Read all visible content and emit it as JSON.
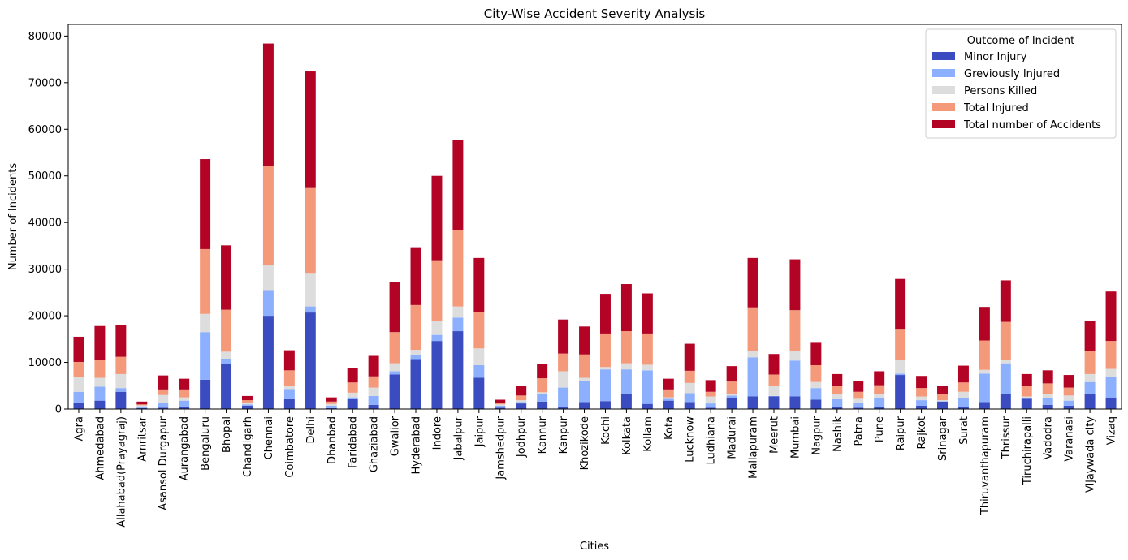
{
  "chart_data": {
    "type": "bar",
    "stacked": true,
    "title": "City-Wise Accident Severity Analysis",
    "xlabel": "Cities",
    "ylabel": "Number of Incidents",
    "ylim": [
      0,
      82500
    ],
    "yticks": [
      0,
      10000,
      20000,
      30000,
      40000,
      50000,
      60000,
      70000,
      80000
    ],
    "grid": false,
    "legend": {
      "title": "Outcome of Incident",
      "placement": "top-right"
    },
    "categories": [
      "Agra",
      "Ahmedabad",
      "Allahabad(Prayagraj)",
      "Amritsar",
      "Asansol Durgapur",
      "Aurangabad",
      "Bengaluru",
      "Bhopal",
      "Chandigarh",
      "Chennai",
      "Coimbatore",
      "Delhi",
      "Dhanbad",
      "Faridabad",
      "Ghaziabad",
      "Gwalior",
      "Hyderabad",
      "Indore",
      "Jabalpur",
      "Jaipur",
      "Jamshedpur",
      "Jodhpur",
      "Kannur",
      "Kanpur",
      "Khozikode",
      "Kochi",
      "Kolkata",
      "Kollam",
      "Kota",
      "Lucknow",
      "Ludhiana",
      "Madurai",
      "Mallapuram",
      "Meerut",
      "Mumbai",
      "Nagpur",
      "Nashik",
      "Patna",
      "Pune",
      "Raipur",
      "Rajkot",
      "Srinagar",
      "Surat",
      "Thiruvanthapuram",
      "Thrissur",
      "Tiruchirapalli",
      "Vadodra",
      "Varanasi",
      "Vijaywada city",
      "Vizaq"
    ],
    "series": [
      {
        "name": "Minor Injury",
        "color": "#3b4cc0",
        "values": [
          1400,
          1800,
          3700,
          200,
          300,
          500,
          6300,
          9600,
          700,
          20000,
          2100,
          20700,
          200,
          2100,
          900,
          7400,
          10700,
          14600,
          16700,
          6700,
          300,
          1200,
          1600,
          400,
          1500,
          1700,
          3300,
          1100,
          1800,
          1500,
          300,
          2300,
          2700,
          2700,
          2700,
          2000,
          400,
          300,
          500,
          7300,
          700,
          1600,
          400,
          1500,
          3200,
          2200,
          900,
          700,
          3300,
          2300
        ]
      },
      {
        "name": "Greviously Injured",
        "color": "#8db0fe",
        "values": [
          2300,
          3000,
          800,
          200,
          1100,
          1300,
          10200,
          1200,
          300,
          5500,
          2200,
          1300,
          500,
          400,
          1900,
          700,
          900,
          1300,
          2900,
          2700,
          400,
          300,
          1600,
          4200,
          4500,
          6800,
          5200,
          7200,
          400,
          1900,
          900,
          600,
          8400,
          100,
          7700,
          2500,
          1700,
          1100,
          1900,
          300,
          1200,
          100,
          2000,
          6100,
          6600,
          100,
          1400,
          1100,
          2500,
          4700
        ]
      },
      {
        "name": "Persons Killed",
        "color": "#dddddd",
        "values": [
          3200,
          1900,
          3000,
          400,
          1600,
          700,
          3900,
          1500,
          400,
          5300,
          600,
          7200,
          400,
          1000,
          1800,
          1700,
          1100,
          2900,
          2400,
          3600,
          300,
          400,
          400,
          3500,
          700,
          500,
          1300,
          1200,
          300,
          2200,
          1500,
          400,
          1300,
          2200,
          2100,
          1300,
          1100,
          800,
          800,
          3000,
          800,
          200,
          1300,
          800,
          700,
          400,
          1000,
          1100,
          1700,
          1600
        ]
      },
      {
        "name": "Total Injured",
        "color": "#f49a7b",
        "values": [
          3200,
          3900,
          3700,
          200,
          1200,
          1700,
          13900,
          9000,
          500,
          21400,
          3400,
          18200,
          500,
          2200,
          2400,
          6700,
          9600,
          13100,
          16400,
          7800,
          300,
          1000,
          3000,
          3800,
          5000,
          7200,
          6900,
          6700,
          1700,
          2600,
          1000,
          2600,
          9400,
          2400,
          8700,
          3600,
          1800,
          1500,
          1900,
          6600,
          1800,
          1300,
          2000,
          6300,
          8200,
          2300,
          2200,
          1700,
          4900,
          6000
        ]
      },
      {
        "name": "Total number of Accidents",
        "color": "#b40426",
        "values": [
          5400,
          7200,
          6800,
          600,
          3000,
          2300,
          19300,
          13800,
          900,
          26200,
          4300,
          25000,
          900,
          3100,
          4400,
          10700,
          12400,
          18100,
          19300,
          11600,
          700,
          2000,
          3000,
          7300,
          6000,
          8500,
          10100,
          8600,
          2300,
          5800,
          2500,
          3300,
          10600,
          4400,
          10900,
          4800,
          2500,
          2300,
          3000,
          10700,
          2600,
          1800,
          3600,
          7200,
          8900,
          2500,
          2800,
          2700,
          6500,
          10600
        ]
      }
    ]
  }
}
